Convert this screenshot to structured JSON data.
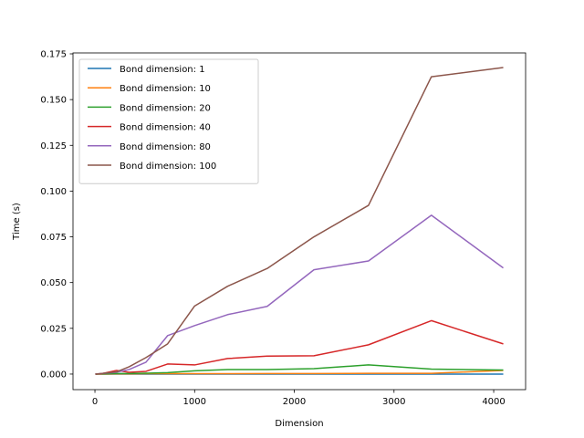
{
  "chart_data": {
    "type": "line",
    "title": "",
    "xlabel": "Dimension",
    "ylabel": "Time (s)",
    "xlim": [
      -220,
      4320
    ],
    "ylim": [
      -0.0085,
      0.1755
    ],
    "xticks": [
      0,
      1000,
      2000,
      3000,
      4000
    ],
    "yticks": [
      0.0,
      0.025,
      0.05,
      0.075,
      0.1,
      0.125,
      0.15,
      0.175
    ],
    "ytick_labels": [
      "0.000",
      "0.025",
      "0.050",
      "0.075",
      "0.100",
      "0.125",
      "0.150",
      "0.175"
    ],
    "grid": false,
    "legend_position": "upper-left",
    "x": [
      4,
      64,
      216,
      343,
      512,
      729,
      1000,
      1331,
      1728,
      2197,
      2744,
      3375,
      4096
    ],
    "series": [
      {
        "name": "Bond dimension: 1",
        "color": "#1f77b4",
        "values": [
          0.0,
          0.0,
          0.0,
          0.0,
          0.0,
          0.0,
          0.0,
          0.0,
          0.0,
          0.0,
          0.0,
          0.0,
          0.0
        ]
      },
      {
        "name": "Bond dimension: 10",
        "color": "#ff7f0e",
        "values": [
          0.0,
          0.0,
          0.0001,
          0.0001,
          0.0002,
          0.0002,
          0.0002,
          0.0002,
          0.0003,
          0.0003,
          0.0004,
          0.0004,
          0.002
        ]
      },
      {
        "name": "Bond dimension: 20",
        "color": "#2ca02c",
        "values": [
          0.0,
          0.0001,
          0.0003,
          0.0003,
          0.0005,
          0.0008,
          0.0018,
          0.0025,
          0.0025,
          0.003,
          0.005,
          0.0027,
          0.0022
        ]
      },
      {
        "name": "Bond dimension: 40",
        "color": "#d62728",
        "values": [
          0.0,
          0.0002,
          0.002,
          0.001,
          0.0015,
          0.0055,
          0.005,
          0.0085,
          0.0098,
          0.01,
          0.016,
          0.0292,
          0.0165
        ]
      },
      {
        "name": "Bond dimension: 80",
        "color": "#9467bd",
        "values": [
          0.0,
          0.0003,
          0.001,
          0.0025,
          0.0065,
          0.021,
          0.0265,
          0.0325,
          0.037,
          0.057,
          0.0618,
          0.0868,
          0.058
        ]
      },
      {
        "name": "Bond dimension: 100",
        "color": "#8c564b",
        "values": [
          0.0,
          0.0003,
          0.0012,
          0.004,
          0.009,
          0.0165,
          0.0372,
          0.048,
          0.0577,
          0.075,
          0.0922,
          0.1625,
          0.1675
        ]
      }
    ]
  }
}
